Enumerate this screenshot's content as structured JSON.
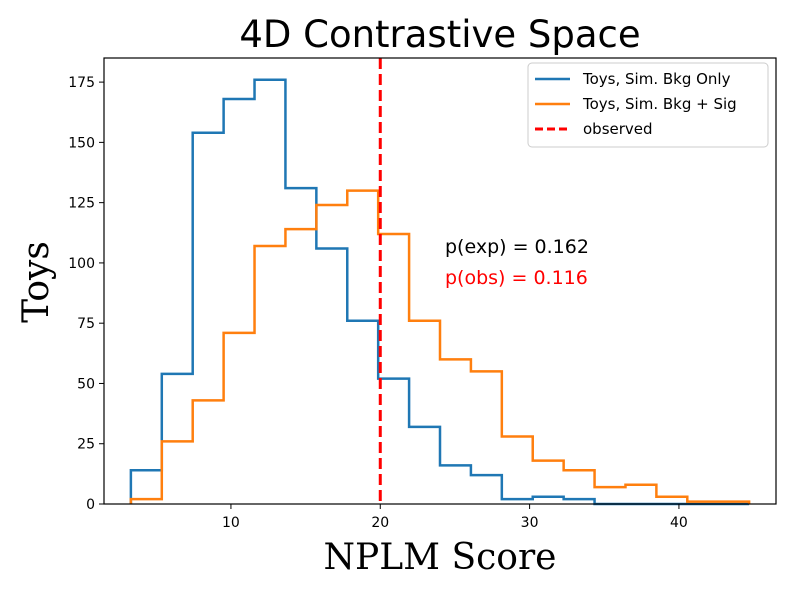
{
  "chart_data": {
    "type": "histogram",
    "title": "4D Contrastive Space",
    "xlabel": "NPLM Score",
    "ylabel": "Toys",
    "xlim": [
      1.5,
      46.5
    ],
    "ylim": [
      0,
      185
    ],
    "xticks": [
      10,
      20,
      30,
      40
    ],
    "yticks": [
      0,
      25,
      50,
      75,
      100,
      125,
      150,
      175
    ],
    "bin_edges": [
      3.3,
      5.37,
      7.44,
      9.51,
      11.58,
      13.65,
      15.72,
      17.79,
      19.86,
      21.93,
      24.0,
      26.07,
      28.14,
      30.21,
      32.28,
      34.35,
      36.42,
      38.49,
      40.56,
      42.63,
      44.7
    ],
    "series": [
      {
        "name": "Toys, Sim. Bkg Only",
        "color": "#1f77b4",
        "values": [
          14,
          54,
          154,
          168,
          176,
          131,
          106,
          76,
          52,
          32,
          16,
          12,
          2,
          3,
          2,
          0,
          0,
          0,
          0,
          0
        ]
      },
      {
        "name": "Toys, Sim. Bkg + Sig",
        "color": "#ff7f0e",
        "values": [
          2,
          26,
          43,
          71,
          107,
          114,
          124,
          130,
          112,
          76,
          60,
          55,
          28,
          18,
          14,
          7,
          8,
          3,
          1,
          1
        ]
      }
    ],
    "observed": {
      "name": "observed",
      "x": 20.0,
      "color": "#ff0000"
    },
    "annotations": [
      {
        "text": "p(exp) = 0.162",
        "color": "#000000"
      },
      {
        "text": "p(obs) = 0.116",
        "color": "#ff0000"
      }
    ],
    "legend_position": "top-right"
  }
}
